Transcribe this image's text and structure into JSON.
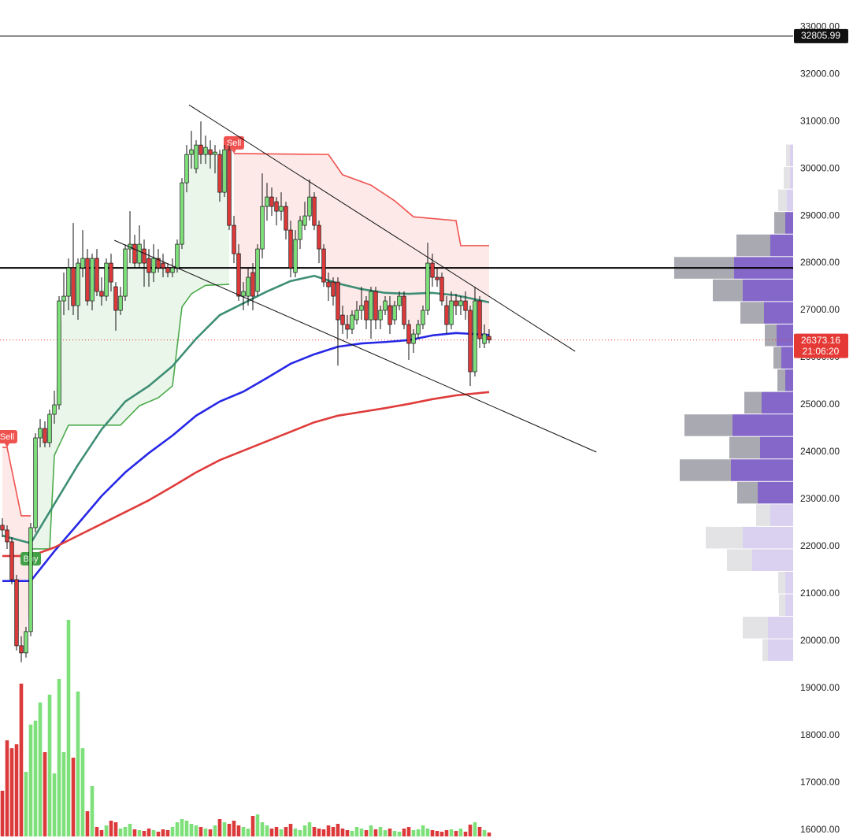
{
  "chart_data": {
    "type": "candlestick",
    "ylim": [
      15830,
      33570
    ],
    "yticks": [
      {
        "value": 16000,
        "label": "16000.00"
      },
      {
        "value": 17000,
        "label": "17000.00"
      },
      {
        "value": 18000,
        "label": "18000.00"
      },
      {
        "value": 19000,
        "label": "19000.00"
      },
      {
        "value": 20000,
        "label": "20000.00"
      },
      {
        "value": 21000,
        "label": "21000.00"
      },
      {
        "value": 22000,
        "label": "22000.00"
      },
      {
        "value": 23000,
        "label": "23000.00"
      },
      {
        "value": 24000,
        "label": "24000.00"
      },
      {
        "value": 25000,
        "label": "25000.00"
      },
      {
        "value": 26000,
        "label": "26000.00"
      },
      {
        "value": 27000,
        "label": "27000.00"
      },
      {
        "value": 28000,
        "label": "28000.00"
      },
      {
        "value": 29000,
        "label": "29000.00"
      },
      {
        "value": 30000,
        "label": "30000.00"
      },
      {
        "value": 31000,
        "label": "31000.00"
      },
      {
        "value": 32000,
        "label": "32000.00"
      },
      {
        "value": 33000,
        "label": "33000.00"
      }
    ],
    "up_color": "#7ee07a",
    "down_color": "#dc3a3a",
    "ohlc": [
      [
        22450,
        22600,
        22200,
        22350
      ],
      [
        22350,
        22450,
        21950,
        22100
      ],
      [
        22100,
        22200,
        21200,
        21300
      ],
      [
        21300,
        21400,
        19800,
        19900
      ],
      [
        19900,
        20100,
        19550,
        19750
      ],
      [
        19750,
        20300,
        19650,
        20200
      ],
      [
        20200,
        22500,
        20100,
        22400
      ],
      [
        22400,
        24400,
        22300,
        24300
      ],
      [
        24300,
        24700,
        24100,
        24500
      ],
      [
        24500,
        24650,
        24100,
        24200
      ],
      [
        24200,
        24900,
        24100,
        24800
      ],
      [
        24800,
        25300,
        24600,
        25000
      ],
      [
        25000,
        27300,
        24900,
        27200
      ],
      [
        27200,
        27800,
        26900,
        27300
      ],
      [
        27300,
        28100,
        27000,
        27900
      ],
      [
        27900,
        28850,
        26900,
        27100
      ],
      [
        27100,
        28100,
        26800,
        28000
      ],
      [
        27900,
        28700,
        27700,
        28100
      ],
      [
        28100,
        28300,
        27100,
        27200
      ],
      [
        27200,
        28200,
        27000,
        28100
      ],
      [
        28100,
        28300,
        27300,
        27400
      ],
      [
        27400,
        27700,
        27100,
        27300
      ],
      [
        27300,
        28100,
        27200,
        28000
      ],
      [
        28000,
        28200,
        27400,
        27600
      ],
      [
        27500,
        27600,
        26570,
        27000
      ],
      [
        27000,
        27500,
        26900,
        27300
      ],
      [
        27300,
        28400,
        27200,
        28300
      ],
      [
        28300,
        29100,
        28000,
        28400
      ],
      [
        28400,
        28600,
        27900,
        28000
      ],
      [
        28000,
        28800,
        27900,
        28400
      ],
      [
        28300,
        28500,
        27500,
        28000
      ],
      [
        28100,
        28300,
        27500,
        27800
      ],
      [
        27800,
        28400,
        27600,
        28100
      ],
      [
        28100,
        28300,
        27800,
        27900
      ],
      [
        28000,
        28200,
        27700,
        27900
      ],
      [
        27900,
        28000,
        27700,
        27800
      ],
      [
        27800,
        28100,
        27700,
        27900
      ],
      [
        27900,
        28500,
        27800,
        28400
      ],
      [
        28400,
        29800,
        28300,
        29700
      ],
      [
        29700,
        30500,
        29500,
        30300
      ],
      [
        30300,
        30800,
        30000,
        30400
      ],
      [
        30000,
        30600,
        29900,
        30500
      ],
      [
        30500,
        31000,
        30100,
        30300
      ],
      [
        30300,
        30700,
        30100,
        30450
      ],
      [
        30400,
        30600,
        30000,
        30300
      ],
      [
        30300,
        30500,
        29900,
        30350
      ],
      [
        30300,
        30400,
        29300,
        29500
      ],
      [
        29500,
        30500,
        29400,
        30400
      ],
      [
        30400,
        30500,
        28700,
        28800
      ],
      [
        28800,
        29000,
        28000,
        28200
      ],
      [
        28200,
        28400,
        27200,
        27300
      ],
      [
        27300,
        27600,
        27000,
        27400
      ],
      [
        27300,
        27900,
        27100,
        27700
      ],
      [
        27800,
        28000,
        27000,
        27300
      ],
      [
        27400,
        28400,
        27300,
        28300
      ],
      [
        28300,
        29900,
        28100,
        29200
      ],
      [
        29200,
        29700,
        28900,
        29400
      ],
      [
        29400,
        29600,
        29000,
        29200
      ],
      [
        29300,
        29400,
        28800,
        29100
      ],
      [
        29100,
        29500,
        28900,
        29200
      ],
      [
        29200,
        29300,
        28500,
        28700
      ],
      [
        28700,
        28900,
        27700,
        27900
      ],
      [
        27800,
        28700,
        27700,
        28500
      ],
      [
        28500,
        29000,
        28300,
        28900
      ],
      [
        28800,
        29300,
        28700,
        29000
      ],
      [
        29000,
        29770,
        28900,
        29400
      ],
      [
        29400,
        29500,
        28700,
        28800
      ],
      [
        28800,
        28900,
        28000,
        28300
      ],
      [
        28300,
        28400,
        27500,
        27600
      ],
      [
        27600,
        27800,
        27200,
        27500
      ],
      [
        27600,
        27700,
        27100,
        27300
      ],
      [
        27600,
        27700,
        25830,
        26800
      ],
      [
        26900,
        27100,
        26500,
        26700
      ],
      [
        26700,
        26900,
        26400,
        26600
      ],
      [
        26600,
        27000,
        26500,
        26900
      ],
      [
        26800,
        27200,
        26700,
        27000
      ],
      [
        27000,
        27500,
        26800,
        27100
      ],
      [
        27200,
        27300,
        26600,
        26800
      ],
      [
        26800,
        27500,
        26400,
        27400
      ],
      [
        27400,
        27500,
        26600,
        26800
      ],
      [
        26800,
        27100,
        26600,
        27000
      ],
      [
        27000,
        27300,
        26900,
        27200
      ],
      [
        27100,
        27300,
        26500,
        26700
      ],
      [
        26800,
        27200,
        26700,
        27100
      ],
      [
        27100,
        27400,
        27000,
        27300
      ],
      [
        27300,
        27400,
        26600,
        26700
      ],
      [
        26700,
        26800,
        25950,
        26300
      ],
      [
        26300,
        26600,
        26100,
        26500
      ],
      [
        26500,
        26800,
        26400,
        26700
      ],
      [
        26700,
        27100,
        26600,
        27000
      ],
      [
        27000,
        28430,
        26900,
        28000
      ],
      [
        28000,
        28200,
        27500,
        27700
      ],
      [
        27700,
        27900,
        27500,
        27650
      ],
      [
        27700,
        27800,
        27100,
        27200
      ],
      [
        27100,
        27300,
        26500,
        26700
      ],
      [
        26700,
        27400,
        26600,
        27200
      ],
      [
        27200,
        27350,
        26900,
        27100
      ],
      [
        27100,
        27300,
        26900,
        27200
      ],
      [
        27200,
        27400,
        26800,
        27000
      ],
      [
        27000,
        27100,
        25400,
        25700
      ],
      [
        25700,
        27500,
        25600,
        27200
      ],
      [
        27200,
        27300,
        26200,
        26400
      ],
      [
        26300,
        26700,
        26200,
        26500
      ],
      [
        26450,
        26600,
        26300,
        26373
      ]
    ],
    "volume": [
      58,
      122,
      112,
      117,
      194,
      82,
      142,
      147,
      170,
      107,
      180,
      80,
      200,
      107,
      275,
      100,
      184,
      112,
      32,
      64,
      12,
      8,
      14,
      20,
      18,
      10,
      12,
      16,
      9,
      8,
      7,
      10,
      8,
      6,
      9,
      8,
      12,
      18,
      22,
      20,
      16,
      14,
      12,
      10,
      9,
      14,
      22,
      18,
      16,
      20,
      14,
      12,
      10,
      26,
      28,
      18,
      14,
      10,
      12,
      9,
      12,
      16,
      10,
      8,
      14,
      18,
      12,
      10,
      9,
      14,
      12,
      16,
      10,
      8,
      7,
      12,
      10,
      8,
      14,
      9,
      12,
      8,
      10,
      7,
      6,
      10,
      12,
      8,
      9,
      14,
      10,
      8,
      7,
      6,
      8,
      9,
      7,
      10,
      6,
      15,
      18,
      12,
      8,
      5
    ],
    "volume_lim": [
      0,
      280
    ],
    "moving_averages": [
      {
        "color": "#3e8e76",
        "x": [
          0,
          6,
          11,
          16,
          21,
          26,
          31,
          36,
          41,
          46,
          51,
          56,
          61,
          66,
          71,
          76,
          81,
          86,
          91,
          96,
          103
        ],
        "values": [
          22230,
          22070,
          22900,
          23730,
          24480,
          25070,
          25400,
          25820,
          26400,
          26900,
          27150,
          27400,
          27620,
          27730,
          27570,
          27450,
          27370,
          27350,
          27370,
          27320,
          27170
        ]
      },
      {
        "color": "#2727e6",
        "x": [
          0,
          6,
          11,
          16,
          21,
          26,
          31,
          36,
          41,
          46,
          51,
          56,
          61,
          66,
          71,
          76,
          81,
          86,
          91,
          96,
          103
        ],
        "values": [
          21270,
          21270,
          21900,
          22480,
          23070,
          23570,
          23980,
          24350,
          24770,
          25070,
          25280,
          25570,
          25870,
          26070,
          26230,
          26300,
          26330,
          26370,
          26470,
          26520,
          26480
        ]
      },
      {
        "color": "#e03b3b",
        "x": [
          0,
          6,
          11,
          16,
          21,
          26,
          31,
          36,
          41,
          46,
          51,
          56,
          61,
          66,
          71,
          76,
          81,
          86,
          91,
          96,
          103
        ],
        "values": [
          21800,
          21800,
          21980,
          22230,
          22480,
          22730,
          22980,
          23270,
          23570,
          23830,
          24030,
          24230,
          24430,
          24630,
          24770,
          24850,
          24930,
          25020,
          25120,
          25200,
          25270
        ]
      }
    ],
    "supertrend": [
      {
        "color": "#ef5350",
        "fill": "rgba(239,83,80,0.13)",
        "x": [
          0,
          1,
          4,
          6
        ],
        "values": [
          24100,
          24100,
          22650,
          22650
        ]
      },
      {
        "color": "#4caa4c",
        "fill": "rgba(76,170,76,0.11)",
        "x": [
          6,
          10,
          11,
          14,
          25,
          29,
          33,
          36,
          38,
          40,
          43,
          48
        ],
        "values": [
          21950,
          21950,
          23930,
          24570,
          24570,
          24980,
          25150,
          25400,
          27070,
          27350,
          27530,
          27550
        ]
      },
      {
        "color": "#ef5350",
        "fill": "rgba(239,83,80,0.13)",
        "x": [
          49,
          69,
          72,
          78,
          83,
          87,
          96,
          97,
          103
        ],
        "values": [
          30320,
          30300,
          29870,
          29650,
          29320,
          28980,
          28900,
          28370,
          28370
        ]
      }
    ],
    "signals": [
      {
        "label": "Sell",
        "bar": 1,
        "value": 24100,
        "color": "#ef5350",
        "side": "above"
      },
      {
        "label": "Buy",
        "bar": 6,
        "value": 21950,
        "color": "#43a047",
        "side": "below"
      },
      {
        "label": "Sell",
        "bar": 49,
        "value": 30320,
        "color": "#ef5350",
        "side": "above"
      }
    ],
    "trendlines": [
      {
        "x": [
          39.5,
          121.2
        ],
        "values": [
          31350,
          26133
        ]
      },
      {
        "x": [
          23.7,
          125.7
        ],
        "values": [
          28483,
          24000
        ]
      }
    ],
    "levels": [
      {
        "value": 27900,
        "width": 2
      },
      {
        "value": 32805.99,
        "width": 1
      }
    ],
    "last_price": {
      "value": 26373.16,
      "countdown": "21:06:20",
      "color": "#e53935"
    },
    "volume_profile": {
      "bins": [
        19570,
        20046,
        20522,
        20998,
        21474,
        21950,
        22426,
        22902,
        23378,
        23854,
        24330,
        24806,
        25282,
        25758,
        26234,
        26710,
        27186,
        27662,
        28138,
        28614,
        29090,
        29566,
        30042,
        30518
      ],
      "up": [
        32,
        32,
        10,
        10,
        52,
        64,
        29,
        45,
        79,
        42,
        77,
        40,
        10,
        15,
        21,
        37,
        64,
        75,
        29,
        10,
        8,
        4,
        4
      ],
      "down": [
        7,
        32,
        8,
        9,
        32,
        47,
        18,
        26,
        65,
        39,
        61,
        22,
        10,
        10,
        15,
        30,
        38,
        76,
        43,
        14,
        11,
        8,
        5
      ],
      "value_area": [
        22902,
        29090
      ],
      "xlim": [
        0,
        1007
      ]
    }
  }
}
